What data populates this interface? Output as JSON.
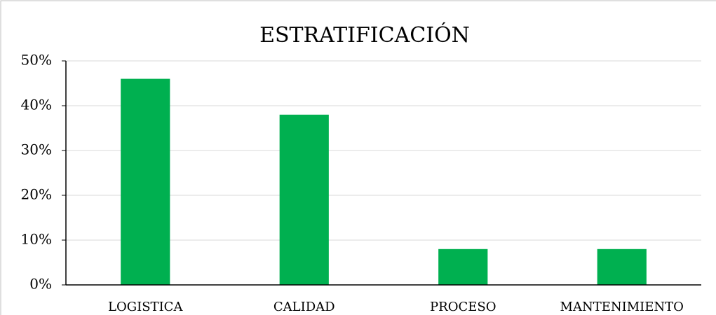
{
  "chart_data": {
    "type": "bar",
    "title": "ESTRATIFICACIÓN",
    "categories": [
      "LOGISTICA",
      "CALIDAD",
      "PROCESO",
      "MANTENIMIENTO"
    ],
    "values": [
      46,
      38,
      8,
      8
    ],
    "color": "#00b050",
    "ylim": [
      0,
      50
    ],
    "yticks": [
      {
        "value": 0,
        "label": "0%"
      },
      {
        "value": 10,
        "label": "10%"
      },
      {
        "value": 20,
        "label": "20%"
      },
      {
        "value": 30,
        "label": "30%"
      },
      {
        "value": 40,
        "label": "40%"
      },
      {
        "value": 50,
        "label": "50%"
      }
    ],
    "grid": true
  }
}
